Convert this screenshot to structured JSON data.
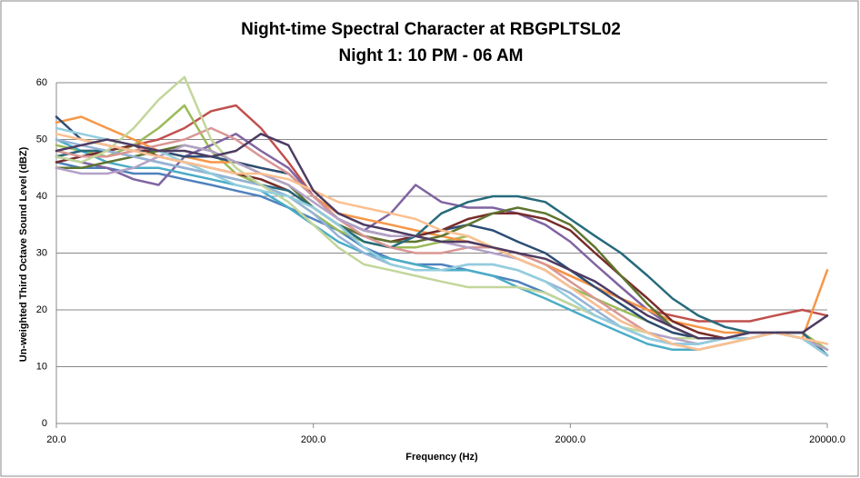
{
  "chart_data": {
    "type": "line",
    "title": "Night-time Spectral Character at RBGPLTSL02",
    "subtitle": "Night 1: 10 PM - 06 AM",
    "x_label": "Frequency (Hz)",
    "y_label": "Un-weighted Third Octave Sound Level (dBZ)",
    "x": [
      20,
      25,
      31.5,
      40,
      50,
      63,
      80,
      100,
      125,
      160,
      200,
      250,
      315,
      400,
      500,
      630,
      800,
      1000,
      1250,
      1600,
      2000,
      2500,
      3150,
      4000,
      5000,
      6300,
      8000,
      10000,
      12500,
      16000,
      20000
    ],
    "xlim": [
      20,
      20000
    ],
    "xticks": [
      {
        "value": 20,
        "label": "20.0"
      },
      {
        "value": 200,
        "label": "200.0"
      },
      {
        "value": 2000,
        "label": "2000.0"
      },
      {
        "value": 20000,
        "label": "20000.0"
      }
    ],
    "x_log": true,
    "ylim": [
      0,
      60
    ],
    "yticks": [
      0,
      10,
      20,
      30,
      40,
      50,
      60
    ],
    "grid": true,
    "series": [
      {
        "color": "#4f81bd",
        "values": [
          46,
          45,
          45,
          44,
          44,
          43,
          42,
          41,
          40,
          38,
          36,
          34,
          31,
          29,
          28,
          28,
          27,
          26,
          25,
          23,
          21,
          19,
          17,
          15,
          14,
          14,
          15,
          15,
          16,
          15,
          12
        ]
      },
      {
        "color": "#c0504d",
        "values": [
          47,
          48,
          48,
          49,
          50,
          52,
          55,
          56,
          52,
          46,
          40,
          36,
          34,
          33,
          33,
          32,
          32,
          31,
          30,
          28,
          26,
          24,
          22,
          20,
          19,
          18,
          18,
          18,
          19,
          20,
          19
        ]
      },
      {
        "color": "#9bbb59",
        "values": [
          49,
          48,
          47,
          49,
          52,
          56,
          48,
          44,
          42,
          40,
          37,
          34,
          32,
          31,
          31,
          32,
          33,
          31,
          29,
          27,
          24,
          22,
          20,
          18,
          16,
          15,
          15,
          16,
          16,
          16,
          13
        ]
      },
      {
        "color": "#8064a2",
        "values": [
          47,
          46,
          45,
          43,
          42,
          47,
          49,
          51,
          48,
          45,
          40,
          36,
          34,
          37,
          42,
          39,
          38,
          38,
          37,
          35,
          32,
          28,
          24,
          20,
          17,
          15,
          15,
          16,
          16,
          16,
          12
        ]
      },
      {
        "color": "#4bacc6",
        "values": [
          50,
          48,
          46,
          45,
          45,
          44,
          43,
          42,
          41,
          38,
          35,
          32,
          30,
          29,
          28,
          27,
          27,
          26,
          24,
          22,
          20,
          18,
          16,
          14,
          13,
          13,
          14,
          15,
          16,
          15,
          13
        ]
      },
      {
        "color": "#f79646",
        "values": [
          53,
          54,
          52,
          50,
          48,
          47,
          46,
          46,
          45,
          44,
          40,
          37,
          36,
          35,
          34,
          33,
          32,
          31,
          30,
          28,
          26,
          24,
          22,
          20,
          18,
          17,
          16,
          16,
          16,
          15,
          27
        ]
      },
      {
        "color": "#2c4d75",
        "values": [
          54,
          50,
          49,
          48,
          48,
          47,
          47,
          46,
          45,
          44,
          40,
          36,
          34,
          33,
          33,
          34,
          35,
          34,
          32,
          30,
          27,
          24,
          21,
          18,
          16,
          15,
          15,
          16,
          16,
          16,
          12
        ]
      },
      {
        "color": "#772c2a",
        "values": [
          46,
          47,
          48,
          49,
          47,
          46,
          45,
          44,
          43,
          41,
          38,
          35,
          33,
          32,
          33,
          34,
          36,
          37,
          37,
          36,
          34,
          30,
          26,
          22,
          18,
          16,
          15,
          16,
          16,
          15,
          12
        ]
      },
      {
        "color": "#5f7530",
        "values": [
          45,
          45,
          46,
          47,
          48,
          49,
          48,
          46,
          44,
          42,
          38,
          35,
          33,
          32,
          32,
          33,
          35,
          37,
          38,
          37,
          35,
          31,
          26,
          21,
          17,
          15,
          15,
          16,
          16,
          16,
          12
        ]
      },
      {
        "color": "#276a7c",
        "values": [
          47,
          48,
          48,
          47,
          46,
          45,
          44,
          43,
          42,
          41,
          38,
          35,
          32,
          31,
          33,
          37,
          39,
          40,
          40,
          39,
          36,
          33,
          30,
          26,
          22,
          19,
          17,
          16,
          16,
          16,
          12
        ]
      },
      {
        "color": "#95b3d7",
        "values": [
          50,
          49,
          48,
          47,
          46,
          45,
          44,
          43,
          42,
          40,
          37,
          33,
          30,
          28,
          27,
          27,
          28,
          28,
          27,
          25,
          23,
          20,
          17,
          15,
          14,
          14,
          15,
          15,
          16,
          15,
          12
        ]
      },
      {
        "color": "#d99694",
        "values": [
          48,
          47,
          47,
          48,
          49,
          50,
          52,
          50,
          47,
          44,
          40,
          36,
          33,
          31,
          30,
          30,
          31,
          31,
          30,
          28,
          25,
          22,
          19,
          16,
          14,
          13,
          14,
          15,
          16,
          15,
          13
        ]
      },
      {
        "color": "#c3d69b",
        "values": [
          47,
          46,
          48,
          52,
          57,
          61,
          50,
          45,
          42,
          39,
          35,
          31,
          28,
          27,
          26,
          25,
          24,
          24,
          24,
          23,
          21,
          19,
          17,
          16,
          15,
          15,
          15,
          16,
          16,
          15,
          13
        ]
      },
      {
        "color": "#b3a2c7",
        "values": [
          45,
          44,
          44,
          45,
          47,
          49,
          48,
          46,
          44,
          42,
          39,
          36,
          34,
          33,
          33,
          32,
          31,
          30,
          29,
          27,
          24,
          21,
          18,
          16,
          15,
          14,
          15,
          16,
          16,
          15,
          13
        ]
      },
      {
        "color": "#93cddd",
        "values": [
          52,
          51,
          50,
          49,
          48,
          46,
          44,
          42,
          41,
          40,
          38,
          35,
          31,
          28,
          27,
          27,
          28,
          28,
          27,
          25,
          22,
          19,
          17,
          15,
          14,
          14,
          15,
          15,
          16,
          15,
          12
        ]
      },
      {
        "color": "#fac090",
        "values": [
          51,
          50,
          49,
          48,
          47,
          46,
          45,
          44,
          44,
          43,
          41,
          39,
          38,
          37,
          36,
          34,
          33,
          31,
          29,
          27,
          24,
          21,
          18,
          16,
          14,
          13,
          14,
          15,
          16,
          15,
          14
        ]
      },
      {
        "color": "#4d3b62",
        "values": [
          48,
          49,
          50,
          49,
          48,
          48,
          47,
          48,
          51,
          49,
          41,
          37,
          35,
          34,
          33,
          32,
          32,
          31,
          30,
          29,
          27,
          25,
          22,
          19,
          17,
          15,
          15,
          16,
          16,
          16,
          19
        ]
      }
    ]
  }
}
